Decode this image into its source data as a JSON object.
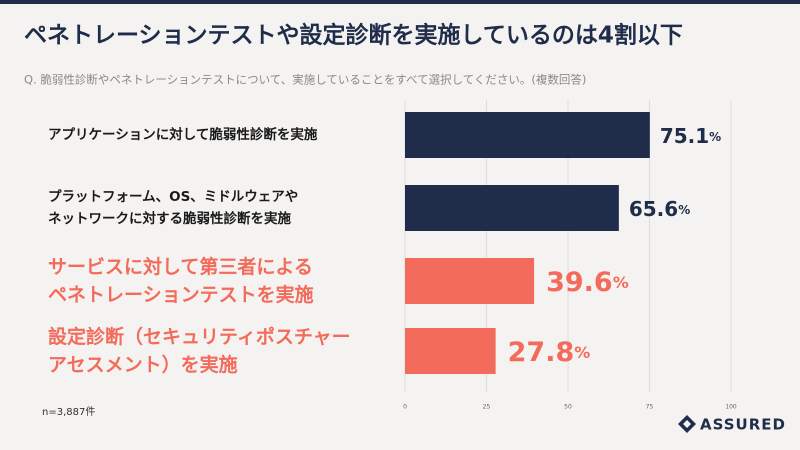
{
  "header": {
    "title": "ペネトレーションテストや設定診断を実施しているのは4割以下",
    "question": "Q. 脆弱性診断やペネトレーションテストについて、実施していることをすべて選択してください。(複数回答)"
  },
  "chart_data": {
    "type": "hbar",
    "categories": [
      "アプリケーションに対して脆弱性診断を実施",
      "プラットフォーム、OS、ミドルウェアや\nネットワークに対する脆弱性診断を実施",
      "サービスに対して第三者による\nペネトレーションテストを実施",
      "設定診断（セキュリティポスチャー\nアセスメント）を実施"
    ],
    "values": [
      75.1,
      65.6,
      39.6,
      27.8
    ],
    "value_labels": [
      "75.1%",
      "65.6%",
      "39.6%",
      "27.8%"
    ],
    "colors": [
      "#1f2d4a",
      "#1f2d4a",
      "#f26b5b",
      "#f26b5b"
    ],
    "xlim": [
      0,
      100
    ],
    "xticks": [
      0,
      25,
      50,
      75,
      100
    ],
    "grid": true
  },
  "footer": {
    "note": "n=3,887件",
    "logo": "ASSURED"
  }
}
